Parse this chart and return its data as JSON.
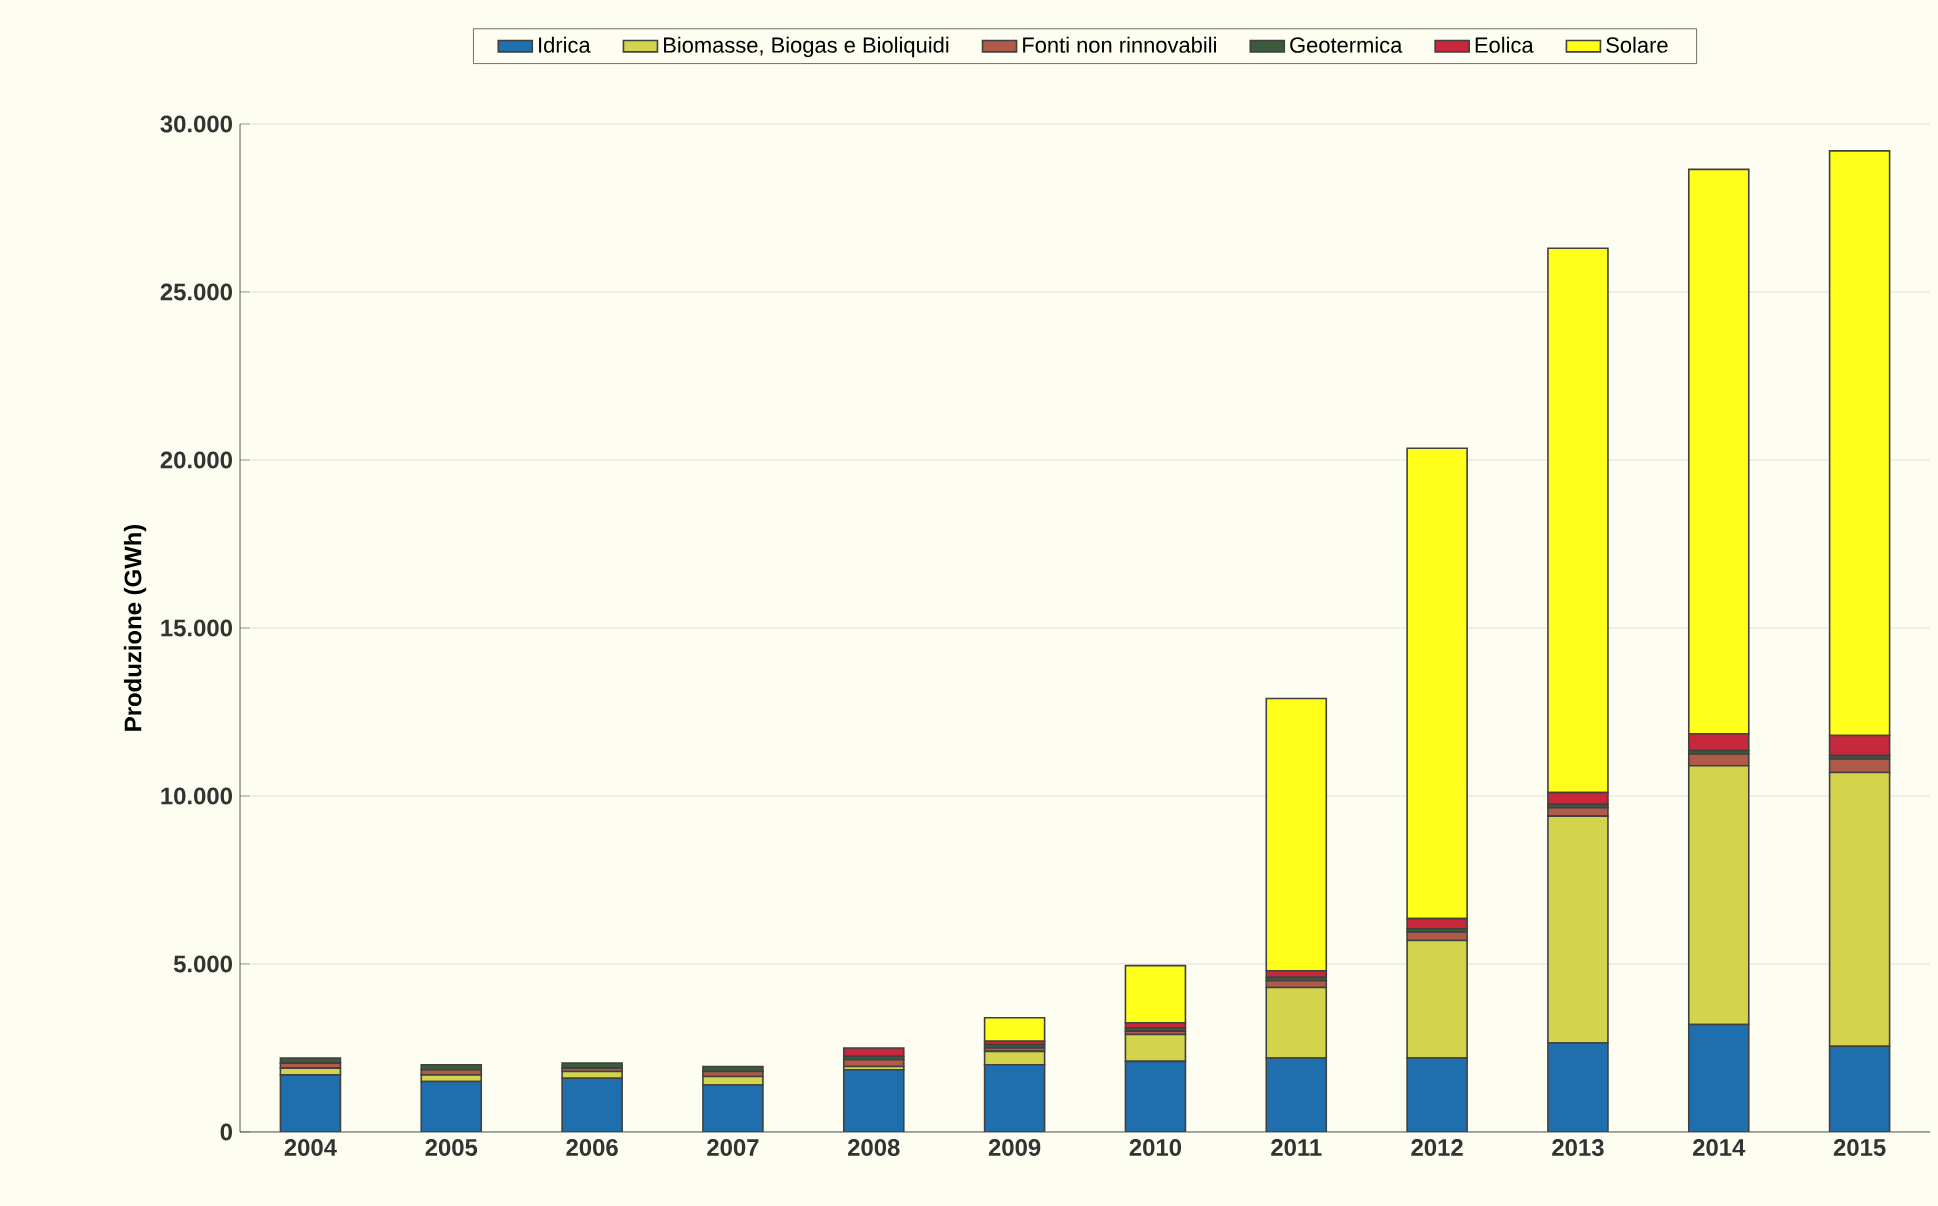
{
  "chart_data": {
    "type": "bar",
    "stacked": true,
    "ylabel": "Produzione (GWh)",
    "categories": [
      "2004",
      "2005",
      "2006",
      "2007",
      "2008",
      "2009",
      "2010",
      "2011",
      "2012",
      "2013",
      "2014",
      "2015"
    ],
    "series": [
      {
        "name": "Idrica",
        "color": "#1f6fae",
        "values": [
          1700,
          1500,
          1600,
          1400,
          1850,
          2000,
          2100,
          2200,
          2200,
          2650,
          3200,
          2550
        ]
      },
      {
        "name": "Biomasse, Biogas e Bioliquidi",
        "color": "#d4d44c",
        "values": [
          200,
          200,
          200,
          250,
          100,
          400,
          800,
          2100,
          3500,
          6750,
          7700,
          8150
        ]
      },
      {
        "name": "Fonti non rinnovabili",
        "color": "#b05a4a",
        "values": [
          150,
          150,
          100,
          150,
          200,
          100,
          100,
          200,
          250,
          250,
          350,
          400
        ]
      },
      {
        "name": "Geotermica",
        "color": "#3d5a3d",
        "values": [
          150,
          150,
          150,
          150,
          100,
          100,
          100,
          100,
          100,
          100,
          100,
          100
        ]
      },
      {
        "name": "Eolica",
        "color": "#c8283c",
        "values": [
          null,
          null,
          null,
          null,
          250,
          100,
          150,
          200,
          300,
          350,
          500,
          600
        ]
      },
      {
        "name": "Solare",
        "color": "#ffff1a",
        "values": [
          0,
          0,
          0,
          0,
          0,
          700,
          1700,
          8100,
          14000,
          16200,
          16800,
          17400
        ]
      }
    ],
    "ylim": [
      0,
      30000
    ],
    "yticks": [
      {
        "value": 0,
        "label": "0"
      },
      {
        "value": 5000,
        "label": "5.000"
      },
      {
        "value": 10000,
        "label": "10.000"
      },
      {
        "value": 15000,
        "label": "15.000"
      },
      {
        "value": 20000,
        "label": "20.000"
      },
      {
        "value": 25000,
        "label": "25.000"
      },
      {
        "value": 30000,
        "label": "30.000"
      }
    ],
    "grid": "y",
    "legend": "top"
  }
}
